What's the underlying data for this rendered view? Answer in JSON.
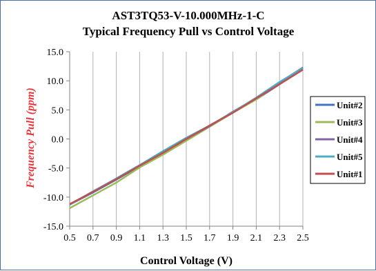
{
  "chart_data": {
    "type": "line",
    "title_line1": "AST3TQ53-V-10.000MHz-1-C",
    "title_line2": "Typical Frequency Pull vs Control Voltage",
    "xlabel": "Control Voltage (V)",
    "ylabel": "Frequency Pull (ppm)",
    "xlim": [
      0.5,
      2.5
    ],
    "ylim": [
      -15,
      15
    ],
    "x_ticks": [
      "0.5",
      "0.7",
      "0.9",
      "1.1",
      "1.3",
      "1.5",
      "1.7",
      "1.9",
      "2.1",
      "2.3",
      "2.5"
    ],
    "y_ticks": [
      "15.0",
      "10.0",
      "5.0",
      "0.0",
      "-5.0",
      "-10.0",
      "-15.0"
    ],
    "grid": "vertical",
    "legend_position": "right",
    "x": [
      0.5,
      0.7,
      0.9,
      1.1,
      1.3,
      1.5,
      1.7,
      1.9,
      2.1,
      2.3,
      2.5
    ],
    "series": [
      {
        "name": "Unit#2",
        "color": "#4472c4",
        "values": [
          -11.3,
          -9.2,
          -7.0,
          -4.7,
          -2.5,
          -0.1,
          2.3,
          4.6,
          6.8,
          9.4,
          12.1
        ]
      },
      {
        "name": "Unit#3",
        "color": "#9bbb59",
        "values": [
          -11.9,
          -9.7,
          -7.5,
          -4.9,
          -2.7,
          -0.3,
          2.1,
          4.5,
          6.8,
          9.6,
          12.0
        ]
      },
      {
        "name": "Unit#4",
        "color": "#8064a2",
        "values": [
          -11.3,
          -9.1,
          -6.8,
          -4.5,
          -2.2,
          0.0,
          2.2,
          4.7,
          7.0,
          9.7,
          12.3
        ]
      },
      {
        "name": "Unit#5",
        "color": "#4bacc6",
        "values": [
          -11.3,
          -9.0,
          -6.8,
          -4.5,
          -2.1,
          0.2,
          2.3,
          4.6,
          7.1,
          9.8,
          12.2
        ]
      },
      {
        "name": "Unit#1",
        "color": "#c0504d",
        "values": [
          -11.2,
          -9.1,
          -6.9,
          -4.6,
          -2.4,
          0.0,
          2.3,
          4.5,
          7.0,
          9.4,
          11.9
        ]
      }
    ],
    "colors": {
      "ylabel": "#e8343a",
      "grid": "#b0b0b0",
      "axis": "#808080"
    }
  }
}
